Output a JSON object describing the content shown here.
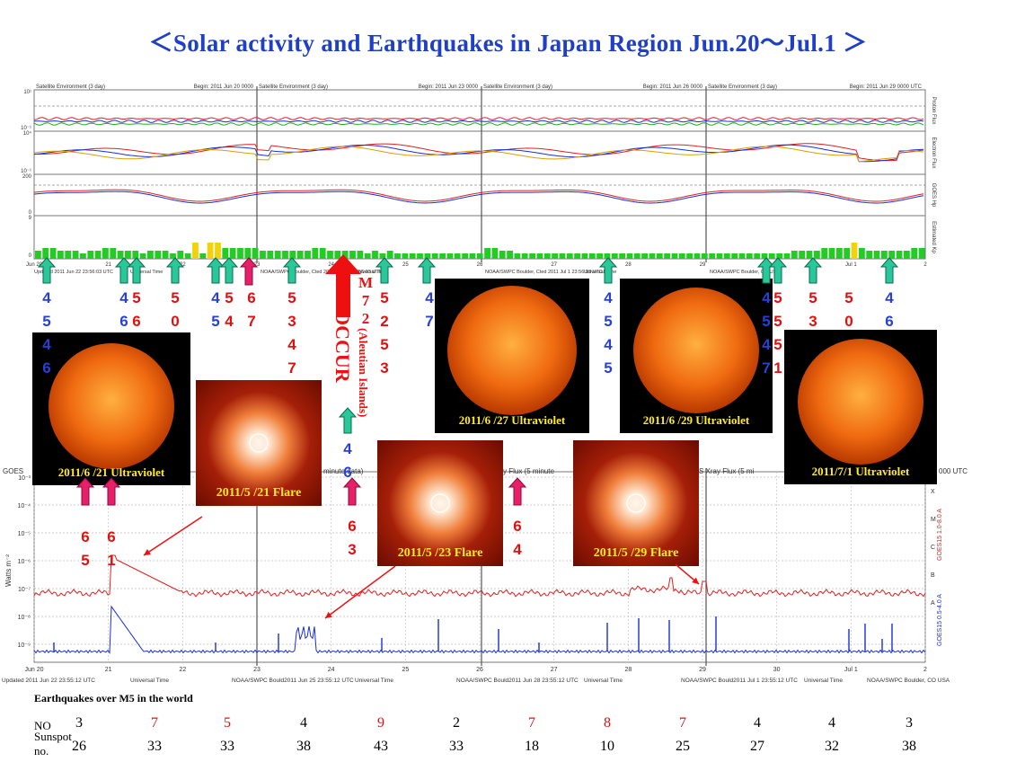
{
  "title": "＜Solar activity and Earthquakes  in Japan Region Jun.20～Jul.1 ＞",
  "top_panels": {
    "headers": [
      {
        "left": "Satellite Environment (3 day)",
        "right": "Begin: 2011 Jun 20 0000"
      },
      {
        "left": "Satellite Environment (3 day)",
        "right": "Begin: 2011 Jun 23 0000"
      },
      {
        "left": "Satellite Environment (3 day)",
        "right": "Begin: 2011 Jun 26 0000"
      },
      {
        "left": "Satellite Environment (3 day)",
        "right": "Begin: 2011 Jun 29 0000 UTC"
      }
    ],
    "right_labels": [
      "Proton Flux",
      "Electron Flux",
      "GOES Hp",
      "Estimated Kp"
    ],
    "ylabels_left": [
      "10¹",
      "10⁻¹",
      "10⁴",
      "10⁻¹",
      "200",
      "0",
      "9",
      "0"
    ],
    "x_ticks": [
      "Jun 20",
      "21",
      "22",
      "23",
      "24",
      "25",
      "26",
      "27",
      "28",
      "29",
      "30",
      "Jul 1",
      "2"
    ],
    "footer": [
      "Updated 2011 Jun 22 23:56:03 UTC",
      "Universal Time",
      "NOAA/SWPC Boulder, Cted 2011 Jun 28 23:56:03 UTC",
      "Universal Time",
      "NOAA/SWPC Boulder, Cted 2011 Jul  1 23:56:03 UTC",
      "Universal Time",
      "NOAA/SWPC Boulder, CO USA"
    ],
    "kp_colors": {
      "green": "#22cc22",
      "yellow": "#f2d20a"
    }
  },
  "xray_panel": {
    "header_left": "GOES",
    "header_mid": "minute data)",
    "header_mid2": "y Flux (5 minute",
    "header_right": "S Xray Flux (5 mi",
    "header_right2": "000 UTC",
    "ylabel": "Watts m⁻²",
    "right_labels": [
      "GOES15 1.0-8.0 A",
      "GOES15 0.5-4.0 A"
    ],
    "band_letters": [
      "X",
      "M",
      "C",
      "B",
      "A"
    ],
    "ytick_labels": [
      "10⁻³",
      "10⁻⁴",
      "10⁻⁵",
      "10⁻⁶",
      "10⁻⁷",
      "10⁻⁸",
      "10⁻⁹"
    ],
    "x_ticks": [
      "Jun 20",
      "21",
      "22",
      "23",
      "24",
      "25",
      "26",
      "27",
      "28",
      "29",
      "30",
      "Jul 1",
      "2"
    ],
    "footer": [
      "Updated 2011 Jun 22 23:55:12 UTC",
      "Universal Time",
      "NOAA/SWPC Bould2011 Jun 25 23:55:12 UTC",
      "Universal Time",
      "NOAA/SWPC Bould2011 Jun 28 23:55:12 UTC",
      "Universal Time",
      "NOAA/SWPC Bould2011 Jul  1 23:55:12 UTC",
      "Universal Time",
      "NOAA/SWPC Boulder, CO USA"
    ],
    "colors": {
      "long": "#e02020",
      "short": "#1a2fd8"
    }
  },
  "sun_images": [
    {
      "caption": "2011/6 /21   Ultraviolet"
    },
    {
      "caption": "2011/6 /27  Ultraviolet"
    },
    {
      "caption": "2011/6 /29  Ultraviolet"
    },
    {
      "caption": "2011/7/1  Ultraviolet"
    }
  ],
  "flare_images": [
    {
      "caption": "2011/5 /21 Flare"
    },
    {
      "caption": "2011/5 /23 Flare"
    },
    {
      "caption": "2011/5 /29 Flare"
    }
  ],
  "big_event": {
    "magnitude": "M7.2 (Aleutian Islands)",
    "occur": "OCCUR",
    "mag_chars": [
      "M",
      "7",
      "2",
      "(Aleutian Islands)"
    ]
  },
  "earthquake_marks": {
    "green_columns": [
      [
        "4",
        "5",
        "4",
        "6"
      ],
      [
        "4",
        "6"
      ],
      [
        "4",
        "5"
      ],
      [
        "4",
        "7"
      ],
      [
        "4",
        "6"
      ],
      [
        "4",
        "5",
        "4",
        "5"
      ],
      [
        "4",
        "5",
        "4",
        "7"
      ],
      [
        "4",
        "6"
      ]
    ],
    "red_columns_top": [
      [
        "5",
        "6"
      ],
      [
        "5",
        "0"
      ],
      [
        "5",
        "4"
      ],
      [
        "6",
        "7"
      ],
      [
        "5",
        "3",
        "4",
        "7"
      ],
      [
        "5",
        "2",
        "5",
        "3"
      ],
      [
        "5",
        "5",
        "5",
        "1"
      ],
      [
        "5",
        "3"
      ],
      [
        "5",
        "0"
      ]
    ],
    "red_columns_bottom": [
      [
        "6",
        "5"
      ],
      [
        "6",
        "1"
      ],
      [
        "6",
        "3"
      ],
      [
        "6",
        "4"
      ]
    ]
  },
  "bottom_table": {
    "heading": "Earthquakes  over  M5 in the world",
    "row1_label": "NO",
    "row2_label": "Sunspot",
    "row2_label2": "no.",
    "no_values": [
      "3",
      "7",
      "5",
      "4",
      "9",
      "2",
      "7",
      "8",
      "7",
      "4",
      "4",
      "3"
    ],
    "no_colors": [
      "#000",
      "#e01010",
      "#e01010",
      "#000",
      "#e01010",
      "#000",
      "#e01010",
      "#e01010",
      "#e01010",
      "#000",
      "#000",
      "#000"
    ],
    "sunspot_values": [
      "26",
      "33",
      "33",
      "38",
      "43",
      "33",
      "18",
      "10",
      "25",
      "27",
      "32",
      "38"
    ]
  }
}
